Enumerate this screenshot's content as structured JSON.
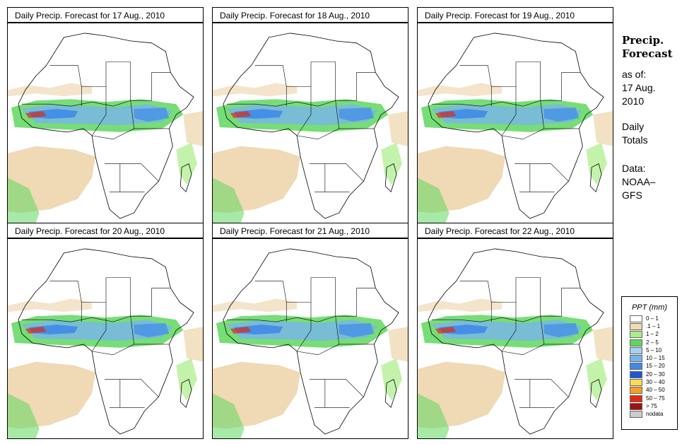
{
  "panels": [
    {
      "title": "Daily Precip. Forecast for  17 Aug., 2010"
    },
    {
      "title": "Daily Precip. Forecast for  18 Aug., 2010"
    },
    {
      "title": "Daily Precip. Forecast for  19 Aug., 2010"
    },
    {
      "title": "Daily Precip. Forecast for  20 Aug., 2010"
    },
    {
      "title": "Daily Precip. Forecast for  21 Aug., 2010"
    },
    {
      "title": "Daily Precip. Forecast for  22 Aug., 2010"
    }
  ],
  "sidebar": {
    "title_line1": "Precip.",
    "title_line2": "Forecast",
    "asof_label": "as of:",
    "date_line1": "17 Aug.",
    "date_line2": "2010",
    "type_line1": "Daily",
    "type_line2": "Totals",
    "data_line1": "Data:",
    "data_line2": "NOAA–",
    "data_line3": "GFS"
  },
  "legend": {
    "title": "PPT (mm)",
    "items": [
      {
        "label": "0 – 1",
        "color": "#ffffff"
      },
      {
        "label": ".1 – 1",
        "color": "#f0d9b5"
      },
      {
        "label": "1 – 2",
        "color": "#aaee88"
      },
      {
        "label": "2 – 5",
        "color": "#5fd75f"
      },
      {
        "label": "5 – 10",
        "color": "#a7d0ee"
      },
      {
        "label": "10 – 15",
        "color": "#78b4ec"
      },
      {
        "label": "15 – 20",
        "color": "#3f8ae8"
      },
      {
        "label": "20 – 30",
        "color": "#1f57d8"
      },
      {
        "label": "30 – 40",
        "color": "#f7dc55"
      },
      {
        "label": "40 – 50",
        "color": "#f5a01e"
      },
      {
        "label": "50 – 75",
        "color": "#e02a10"
      },
      {
        "label": "> 75",
        "color": "#a01010"
      },
      {
        "label": "nodata",
        "color": "#cccccc"
      }
    ]
  }
}
